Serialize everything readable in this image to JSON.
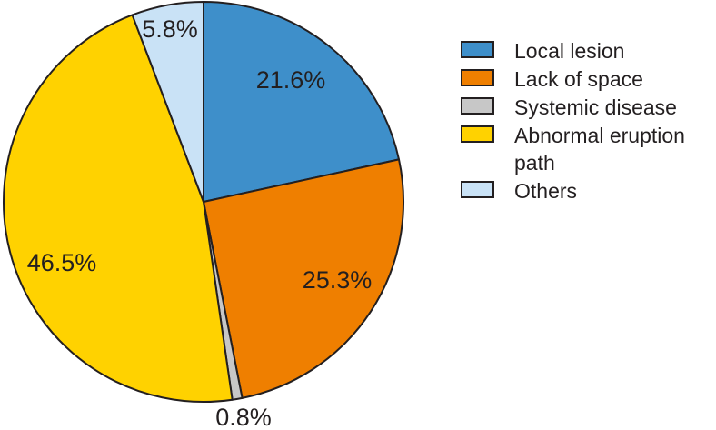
{
  "figure": {
    "background_color": "#ffffff",
    "outline_color": "#231f20",
    "text_color": "#231f20"
  },
  "chart_data": {
    "type": "pie",
    "title": "",
    "start_angle_deg": 0,
    "direction": "clockwise",
    "legend_position": "right",
    "slices": [
      {
        "label": "Local lesion",
        "value": 21.6,
        "display": "21.6%",
        "color": "#3e8fca",
        "label_placement": "inside"
      },
      {
        "label": "Lack of space",
        "value": 25.3,
        "display": "25.3%",
        "color": "#ef7f00",
        "label_placement": "inside"
      },
      {
        "label": "Systemic disease",
        "value": 0.8,
        "display": "0.8%",
        "color": "#c7c7c7",
        "label_placement": "outside-bottom"
      },
      {
        "label": "Abnormal eruption path",
        "value": 46.5,
        "display": "46.5%",
        "color": "#ffd200",
        "label_placement": "inside"
      },
      {
        "label": "Others",
        "value": 5.8,
        "display": "5.8%",
        "color": "#c9e2f6",
        "label_placement": "inside"
      }
    ]
  }
}
